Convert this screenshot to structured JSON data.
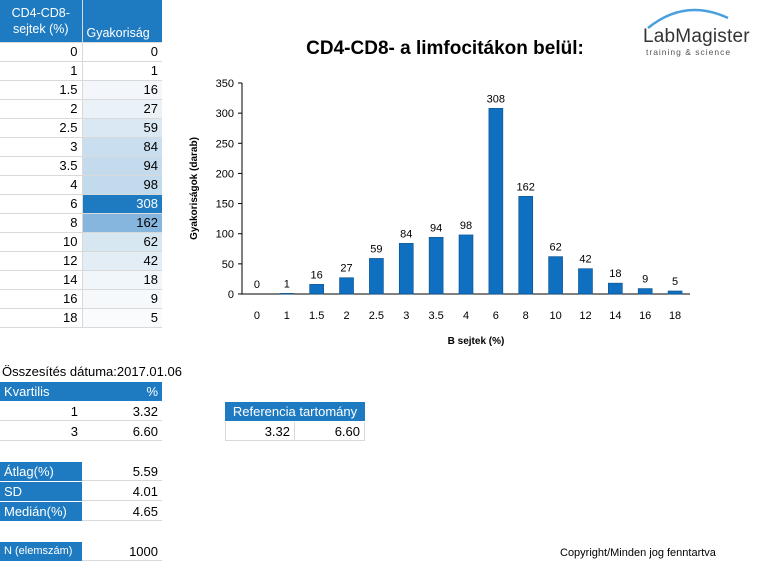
{
  "table": {
    "header_col1": "CD4-CD8-sejtek (%)",
    "header_col2": "Gyakoriság",
    "rows": [
      {
        "x": "0",
        "y": "0",
        "bg": "#ffffff"
      },
      {
        "x": "1",
        "y": "1",
        "bg": "#ffffff"
      },
      {
        "x": "1.5",
        "y": "16",
        "bg": "#f3f7fb"
      },
      {
        "x": "2",
        "y": "27",
        "bg": "#eaf2f8"
      },
      {
        "x": "2.5",
        "y": "59",
        "bg": "#d9e8f3"
      },
      {
        "x": "3",
        "y": "84",
        "bg": "#c9dfef"
      },
      {
        "x": "3.5",
        "y": "94",
        "bg": "#c3dbed"
      },
      {
        "x": "4",
        "y": "98",
        "bg": "#c1daec"
      },
      {
        "x": "6",
        "y": "308",
        "bg": "#1f7bc1"
      },
      {
        "x": "8",
        "y": "162",
        "bg": "#86b6dd"
      },
      {
        "x": "10",
        "y": "62",
        "bg": "#d7e7f2"
      },
      {
        "x": "12",
        "y": "42",
        "bg": "#e2edf6"
      },
      {
        "x": "14",
        "y": "18",
        "bg": "#f1f6fa"
      },
      {
        "x": "16",
        "y": "9",
        "bg": "#f6f9fc"
      },
      {
        "x": "18",
        "y": "5",
        "bg": "#f9fbfd"
      }
    ]
  },
  "summary": {
    "date_label": "Összesítés dátuma:2017.01.06",
    "quartile_header": "Kvartilis",
    "percent_header": "%",
    "q1_label": "1",
    "q1_value": "3.32",
    "q3_label": "3",
    "q3_value": "6.60",
    "mean_label": "Átlag(%)",
    "mean_value": "5.59",
    "sd_label": "SD",
    "sd_value": "4.01",
    "median_label": "Medián(%)",
    "median_value": "4.65",
    "n_label": "N (elemszám)",
    "n_value": "1000"
  },
  "reference": {
    "header": "Referencia tartomány",
    "low": "3.32",
    "high": "6.60"
  },
  "logo": {
    "name": "LabMagister",
    "tagline": "training & science"
  },
  "copyright": "Copyright/Minden jog fenntartva",
  "colors": {
    "accent": "#1f7bc1",
    "bar": "#0f6fc0"
  },
  "chart_data": {
    "type": "bar",
    "title": "CD4-CD8- a limfocitákon belül:",
    "xlabel": "B sejtek (%)",
    "ylabel": "Gyakoriságok (darab)",
    "categories": [
      "0",
      "1",
      "1.5",
      "2",
      "2.5",
      "3",
      "3.5",
      "4",
      "6",
      "8",
      "10",
      "12",
      "14",
      "16",
      "18"
    ],
    "values": [
      0,
      1,
      16,
      27,
      59,
      84,
      94,
      98,
      308,
      162,
      62,
      42,
      18,
      9,
      5
    ],
    "ylim": [
      0,
      350
    ],
    "yticks": [
      0,
      50,
      100,
      150,
      200,
      250,
      300,
      350
    ],
    "grid": false,
    "legend": "none"
  }
}
